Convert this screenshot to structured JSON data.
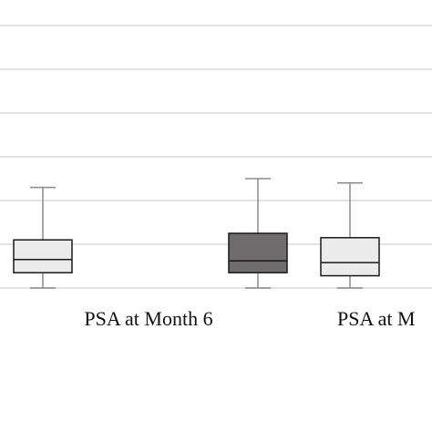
{
  "chart_data": {
    "type": "box",
    "title": "",
    "xlabel": "",
    "ylabel": "",
    "ylim": [
      0,
      6
    ],
    "grid": true,
    "categories": [
      "PSA at Month 6",
      "PSA at M"
    ],
    "groups": [
      {
        "category": "PSA at Month 6",
        "boxes": [
          {
            "min": 0,
            "q1": 0.35,
            "median": 0.65,
            "q3": 1.1,
            "max": 2.3,
            "fill": "#ebebeb"
          }
        ]
      },
      {
        "category": "PSA at M",
        "boxes": [
          {
            "min": 0,
            "q1": 0.35,
            "median": 0.62,
            "q3": 1.25,
            "max": 2.5,
            "fill": "#6e6c6c"
          },
          {
            "min": 0,
            "q1": 0.28,
            "median": 0.58,
            "q3": 1.15,
            "max": 2.4,
            "fill": "#ebebeb"
          }
        ]
      }
    ]
  }
}
